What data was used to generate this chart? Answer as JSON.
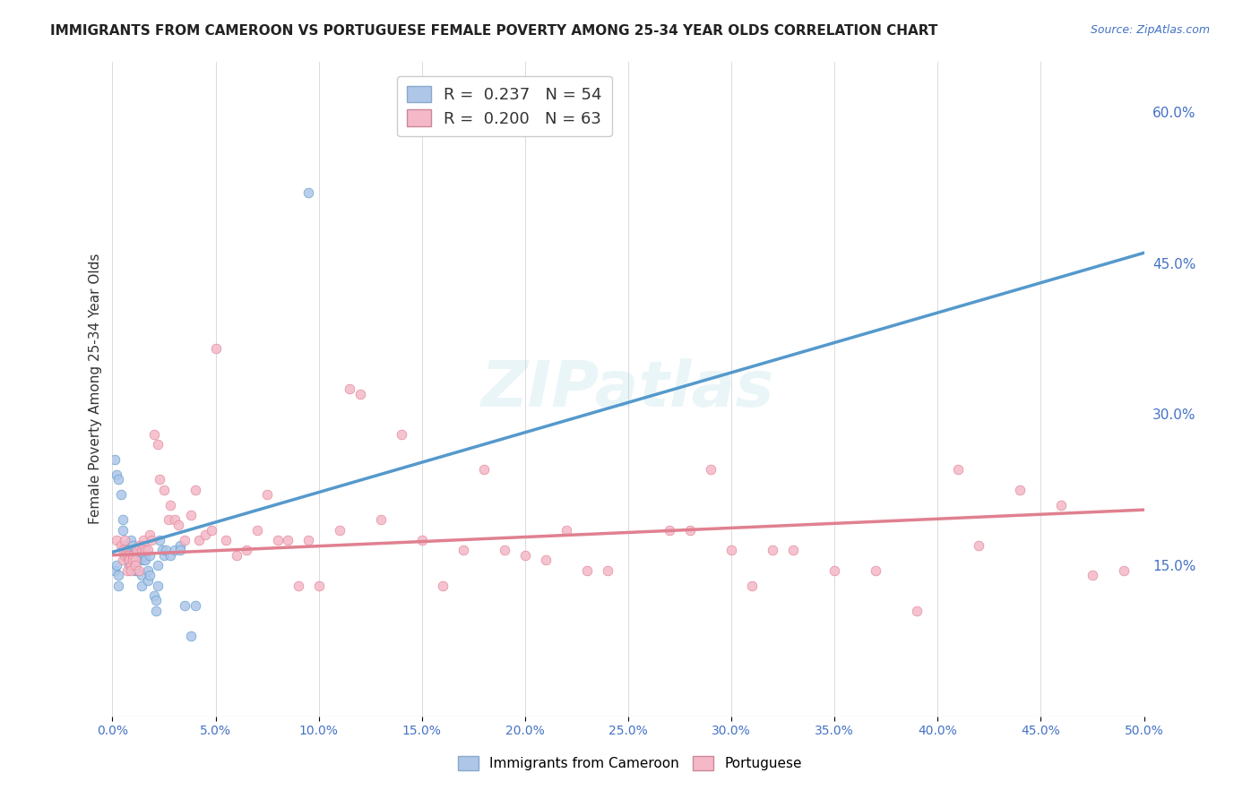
{
  "title": "IMMIGRANTS FROM CAMEROON VS PORTUGUESE FEMALE POVERTY AMONG 25-34 YEAR OLDS CORRELATION CHART",
  "source": "Source: ZipAtlas.com",
  "ylabel": "Female Poverty Among 25-34 Year Olds",
  "xlim": [
    0.0,
    0.5
  ],
  "ylim": [
    0.0,
    0.65
  ],
  "xticks": [
    0.0,
    0.05,
    0.1,
    0.15,
    0.2,
    0.25,
    0.3,
    0.35,
    0.4,
    0.45,
    0.5
  ],
  "yticks_right": [
    0.15,
    0.3,
    0.45,
    0.6
  ],
  "legend_label_blue": "Immigrants from Cameroon",
  "legend_label_pink": "Portuguese",
  "legend_color_blue": "#aec6e8",
  "legend_color_pink": "#f4b8c8",
  "watermark": "ZIPatlas",
  "blue_R": 0.237,
  "blue_N": 54,
  "pink_R": 0.2,
  "pink_N": 63,
  "blue_trend": [
    0.163,
    0.46
  ],
  "pink_trend": [
    0.16,
    0.205
  ],
  "blue_dash": [
    0.163,
    0.46
  ],
  "blue_dots": [
    [
      0.001,
      0.255
    ],
    [
      0.002,
      0.24
    ],
    [
      0.003,
      0.235
    ],
    [
      0.004,
      0.22
    ],
    [
      0.005,
      0.195
    ],
    [
      0.005,
      0.185
    ],
    [
      0.006,
      0.17
    ],
    [
      0.006,
      0.162
    ],
    [
      0.007,
      0.165
    ],
    [
      0.007,
      0.155
    ],
    [
      0.008,
      0.155
    ],
    [
      0.008,
      0.15
    ],
    [
      0.009,
      0.16
    ],
    [
      0.009,
      0.175
    ],
    [
      0.01,
      0.17
    ],
    [
      0.01,
      0.16
    ],
    [
      0.011,
      0.165
    ],
    [
      0.011,
      0.145
    ],
    [
      0.012,
      0.16
    ],
    [
      0.012,
      0.145
    ],
    [
      0.013,
      0.165
    ],
    [
      0.013,
      0.155
    ],
    [
      0.014,
      0.13
    ],
    [
      0.014,
      0.14
    ],
    [
      0.015,
      0.155
    ],
    [
      0.015,
      0.165
    ],
    [
      0.015,
      0.16
    ],
    [
      0.016,
      0.16
    ],
    [
      0.016,
      0.155
    ],
    [
      0.017,
      0.145
    ],
    [
      0.017,
      0.135
    ],
    [
      0.018,
      0.16
    ],
    [
      0.018,
      0.14
    ],
    [
      0.02,
      0.12
    ],
    [
      0.021,
      0.115
    ],
    [
      0.021,
      0.105
    ],
    [
      0.022,
      0.13
    ],
    [
      0.022,
      0.15
    ],
    [
      0.023,
      0.175
    ],
    [
      0.024,
      0.165
    ],
    [
      0.025,
      0.16
    ],
    [
      0.026,
      0.165
    ],
    [
      0.028,
      0.16
    ],
    [
      0.03,
      0.165
    ],
    [
      0.033,
      0.17
    ],
    [
      0.033,
      0.165
    ],
    [
      0.035,
      0.11
    ],
    [
      0.038,
      0.08
    ],
    [
      0.04,
      0.11
    ],
    [
      0.095,
      0.52
    ],
    [
      0.001,
      0.145
    ],
    [
      0.002,
      0.15
    ],
    [
      0.003,
      0.14
    ],
    [
      0.003,
      0.13
    ]
  ],
  "pink_dots": [
    [
      0.002,
      0.175
    ],
    [
      0.004,
      0.17
    ],
    [
      0.005,
      0.155
    ],
    [
      0.005,
      0.165
    ],
    [
      0.006,
      0.175
    ],
    [
      0.006,
      0.16
    ],
    [
      0.007,
      0.16
    ],
    [
      0.007,
      0.145
    ],
    [
      0.008,
      0.16
    ],
    [
      0.008,
      0.155
    ],
    [
      0.009,
      0.15
    ],
    [
      0.009,
      0.145
    ],
    [
      0.01,
      0.16
    ],
    [
      0.01,
      0.155
    ],
    [
      0.011,
      0.155
    ],
    [
      0.011,
      0.15
    ],
    [
      0.012,
      0.165
    ],
    [
      0.013,
      0.17
    ],
    [
      0.013,
      0.145
    ],
    [
      0.014,
      0.165
    ],
    [
      0.015,
      0.175
    ],
    [
      0.015,
      0.17
    ],
    [
      0.016,
      0.165
    ],
    [
      0.017,
      0.165
    ],
    [
      0.018,
      0.18
    ],
    [
      0.019,
      0.175
    ],
    [
      0.02,
      0.28
    ],
    [
      0.022,
      0.27
    ],
    [
      0.023,
      0.235
    ],
    [
      0.025,
      0.225
    ],
    [
      0.027,
      0.195
    ],
    [
      0.028,
      0.21
    ],
    [
      0.03,
      0.195
    ],
    [
      0.032,
      0.19
    ],
    [
      0.035,
      0.175
    ],
    [
      0.038,
      0.2
    ],
    [
      0.04,
      0.225
    ],
    [
      0.042,
      0.175
    ],
    [
      0.045,
      0.18
    ],
    [
      0.048,
      0.185
    ],
    [
      0.05,
      0.365
    ],
    [
      0.055,
      0.175
    ],
    [
      0.06,
      0.16
    ],
    [
      0.065,
      0.165
    ],
    [
      0.07,
      0.185
    ],
    [
      0.075,
      0.22
    ],
    [
      0.08,
      0.175
    ],
    [
      0.085,
      0.175
    ],
    [
      0.09,
      0.13
    ],
    [
      0.095,
      0.175
    ],
    [
      0.1,
      0.13
    ],
    [
      0.11,
      0.185
    ],
    [
      0.115,
      0.325
    ],
    [
      0.12,
      0.32
    ],
    [
      0.13,
      0.195
    ],
    [
      0.14,
      0.28
    ],
    [
      0.15,
      0.175
    ],
    [
      0.16,
      0.13
    ],
    [
      0.17,
      0.165
    ],
    [
      0.18,
      0.245
    ],
    [
      0.19,
      0.165
    ],
    [
      0.2,
      0.16
    ],
    [
      0.21,
      0.155
    ],
    [
      0.22,
      0.185
    ],
    [
      0.23,
      0.145
    ],
    [
      0.24,
      0.145
    ],
    [
      0.27,
      0.185
    ],
    [
      0.28,
      0.185
    ],
    [
      0.29,
      0.245
    ],
    [
      0.3,
      0.165
    ],
    [
      0.31,
      0.13
    ],
    [
      0.32,
      0.165
    ],
    [
      0.33,
      0.165
    ],
    [
      0.35,
      0.145
    ],
    [
      0.37,
      0.145
    ],
    [
      0.39,
      0.105
    ],
    [
      0.41,
      0.245
    ],
    [
      0.42,
      0.17
    ],
    [
      0.44,
      0.225
    ],
    [
      0.46,
      0.21
    ],
    [
      0.475,
      0.14
    ],
    [
      0.49,
      0.145
    ]
  ],
  "title_color": "#222222",
  "source_color": "#4472c4",
  "axis_color": "#4472c4",
  "background_color": "#ffffff",
  "grid_color": "#cccccc"
}
